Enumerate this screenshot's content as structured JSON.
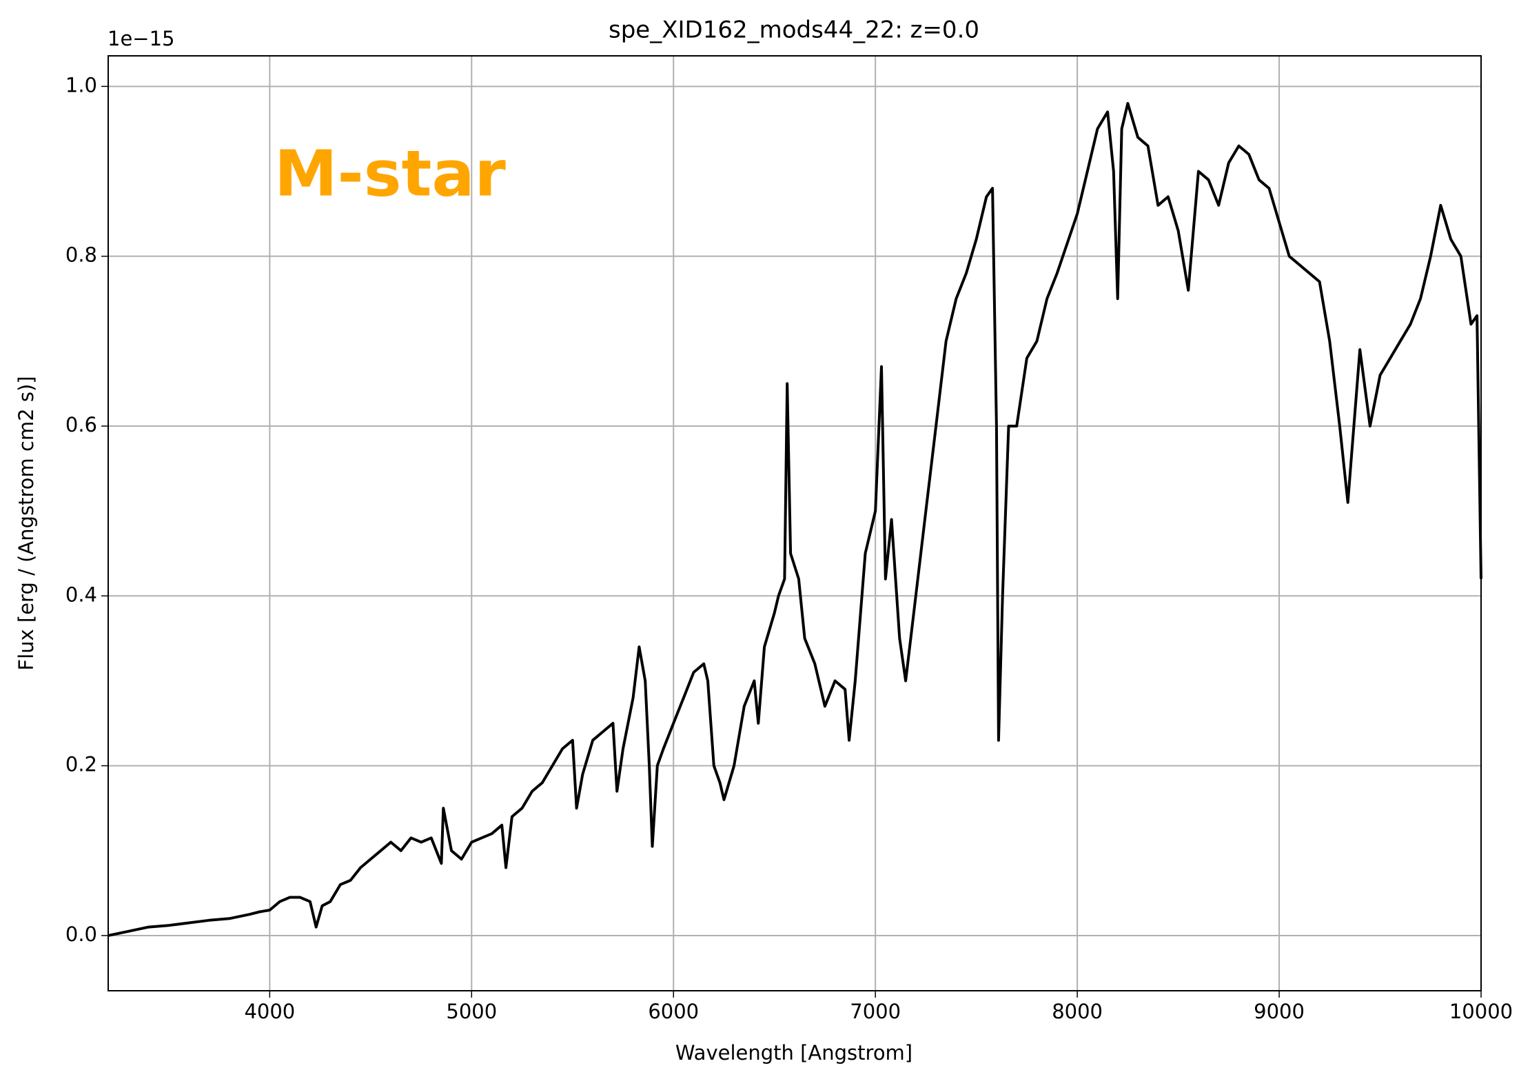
{
  "chart_data": {
    "type": "line",
    "title": "spe_XID162_mods44_22: z=0.0",
    "xlabel": "Wavelength [Angstrom]",
    "ylabel": "Flux [erg / (Angstrom cm2 s)]",
    "y_offset_label": "1e−15",
    "annotation": "M-star",
    "annotation_color": "#ffa500",
    "grid": true,
    "xlim": [
      3200,
      10000
    ],
    "ylim": [
      -0.065,
      1.036
    ],
    "xticks": [
      4000,
      5000,
      6000,
      7000,
      8000,
      9000,
      10000
    ],
    "yticks": [
      {
        "value": 0,
        "label": "0.0"
      },
      0.2,
      0.4,
      0.6,
      0.8,
      {
        "value": 1,
        "label": "1.0"
      }
    ],
    "x": [
      3200,
      3300,
      3400,
      3500,
      3600,
      3700,
      3800,
      3900,
      3950,
      4000,
      4050,
      4100,
      4150,
      4200,
      4230,
      4260,
      4300,
      4350,
      4400,
      4450,
      4500,
      4550,
      4600,
      4650,
      4700,
      4750,
      4800,
      4850,
      4860,
      4900,
      4950,
      5000,
      5050,
      5100,
      5150,
      5170,
      5200,
      5250,
      5300,
      5350,
      5400,
      5450,
      5500,
      5520,
      5550,
      5600,
      5650,
      5700,
      5720,
      5750,
      5800,
      5830,
      5860,
      5880,
      5895,
      5920,
      5950,
      6000,
      6050,
      6100,
      6150,
      6170,
      6200,
      6230,
      6250,
      6300,
      6350,
      6400,
      6420,
      6450,
      6500,
      6520,
      6550,
      6563,
      6580,
      6620,
      6650,
      6700,
      6750,
      6800,
      6850,
      6870,
      6900,
      6950,
      7000,
      7030,
      7050,
      7080,
      7120,
      7150,
      7200,
      7250,
      7300,
      7350,
      7400,
      7450,
      7500,
      7550,
      7580,
      7600,
      7610,
      7630,
      7660,
      7700,
      7750,
      7800,
      7850,
      7900,
      8000,
      8050,
      8100,
      8150,
      8180,
      8200,
      8220,
      8250,
      8300,
      8350,
      8400,
      8450,
      8500,
      8550,
      8600,
      8650,
      8700,
      8750,
      8800,
      8850,
      8900,
      8950,
      9000,
      9050,
      9100,
      9150,
      9200,
      9250,
      9300,
      9340,
      9360,
      9400,
      9450,
      9500,
      9550,
      9600,
      9650,
      9700,
      9750,
      9800,
      9850,
      9900,
      9950,
      9980,
      10000
    ],
    "series": [
      {
        "name": "flux",
        "color": "#000000",
        "values": [
          0.0,
          0.005,
          0.01,
          0.012,
          0.015,
          0.018,
          0.02,
          0.025,
          0.028,
          0.03,
          0.04,
          0.045,
          0.045,
          0.04,
          0.01,
          0.035,
          0.04,
          0.06,
          0.065,
          0.08,
          0.09,
          0.1,
          0.11,
          0.1,
          0.115,
          0.11,
          0.115,
          0.085,
          0.15,
          0.1,
          0.09,
          0.11,
          0.115,
          0.12,
          0.13,
          0.08,
          0.14,
          0.15,
          0.17,
          0.18,
          0.2,
          0.22,
          0.23,
          0.15,
          0.19,
          0.23,
          0.24,
          0.25,
          0.17,
          0.22,
          0.28,
          0.34,
          0.3,
          0.2,
          0.105,
          0.2,
          0.22,
          0.25,
          0.28,
          0.31,
          0.32,
          0.3,
          0.2,
          0.18,
          0.16,
          0.2,
          0.27,
          0.3,
          0.25,
          0.34,
          0.38,
          0.4,
          0.42,
          0.65,
          0.45,
          0.42,
          0.35,
          0.32,
          0.27,
          0.3,
          0.29,
          0.23,
          0.3,
          0.45,
          0.5,
          0.67,
          0.42,
          0.49,
          0.35,
          0.3,
          0.4,
          0.5,
          0.6,
          0.7,
          0.75,
          0.78,
          0.82,
          0.87,
          0.88,
          0.6,
          0.23,
          0.4,
          0.6,
          0.6,
          0.68,
          0.7,
          0.75,
          0.78,
          0.85,
          0.9,
          0.95,
          0.97,
          0.9,
          0.75,
          0.95,
          0.98,
          0.94,
          0.93,
          0.86,
          0.87,
          0.83,
          0.76,
          0.9,
          0.89,
          0.86,
          0.91,
          0.93,
          0.92,
          0.89,
          0.88,
          0.84,
          0.8,
          0.79,
          0.78,
          0.77,
          0.7,
          0.6,
          0.51,
          0.57,
          0.69,
          0.6,
          0.66,
          0.68,
          0.7,
          0.72,
          0.75,
          0.8,
          0.86,
          0.82,
          0.8,
          0.72,
          0.73,
          0.42
        ]
      }
    ]
  }
}
